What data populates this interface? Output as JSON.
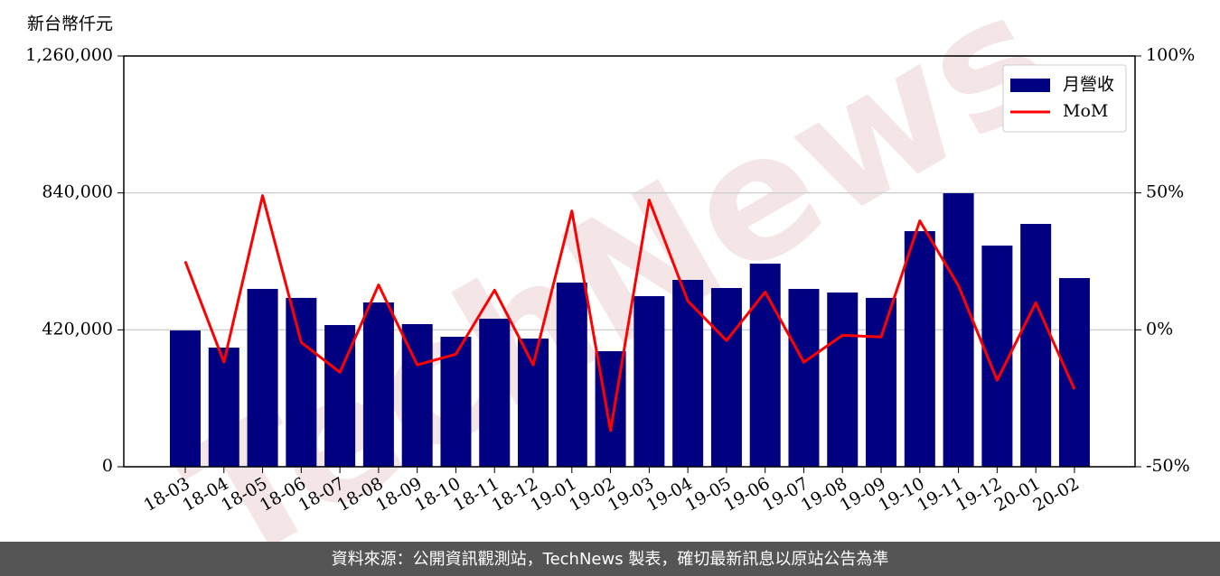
{
  "chart_data": {
    "type": "combo",
    "y_label": "新台幣仟元",
    "watermark": "TechNews",
    "footer": "資料來源：公開資訊觀測站，TechNews 製表，確切最新訊息以原站公告為準",
    "categories": [
      "18-03",
      "18-04",
      "18-05",
      "18-06",
      "18-07",
      "18-08",
      "18-09",
      "18-10",
      "18-11",
      "18-12",
      "19-01",
      "19-02",
      "19-03",
      "19-04",
      "19-05",
      "19-06",
      "19-07",
      "19-08",
      "19-09",
      "19-10",
      "19-11",
      "19-12",
      "20-01",
      "20-02"
    ],
    "series": [
      {
        "name": "月營收",
        "type": "bar",
        "color": "#000080",
        "axis": "y",
        "values": [
          418000,
          365500,
          545500,
          518000,
          434700,
          504000,
          437500,
          398700,
          454100,
          393200,
          564900,
          354400,
          523300,
          573200,
          548300,
          623000,
          545500,
          534400,
          518000,
          722700,
          839000,
          678400,
          744900,
          578700
        ]
      },
      {
        "name": "MoM",
        "type": "line",
        "color": "#ff0000",
        "axis": "y2",
        "values": [
          25.0,
          -11.8,
          49.0,
          -4.6,
          -15.5,
          16.4,
          -12.8,
          -8.9,
          14.5,
          -12.8,
          43.4,
          -36.8,
          47.4,
          10.5,
          -3.9,
          13.8,
          -11.8,
          -2.0,
          -2.6,
          39.8,
          16.1,
          -18.4,
          9.9,
          -21.7
        ]
      }
    ],
    "ylim": [
      0,
      1260000
    ],
    "yticks": [
      0,
      {
        "value": 420000,
        "label": "420,000"
      },
      {
        "value": 840000,
        "label": "840,000"
      },
      {
        "value": 1260000,
        "label": "1,260,000"
      }
    ],
    "y2lim": [
      -50,
      100
    ],
    "y2ticks": [
      {
        "value": -50,
        "label": "-50%"
      },
      {
        "value": 0,
        "label": "0%"
      },
      {
        "value": 50,
        "label": "50%"
      },
      {
        "value": 100,
        "label": "100%"
      }
    ],
    "grid": true,
    "legend": "upper right"
  }
}
